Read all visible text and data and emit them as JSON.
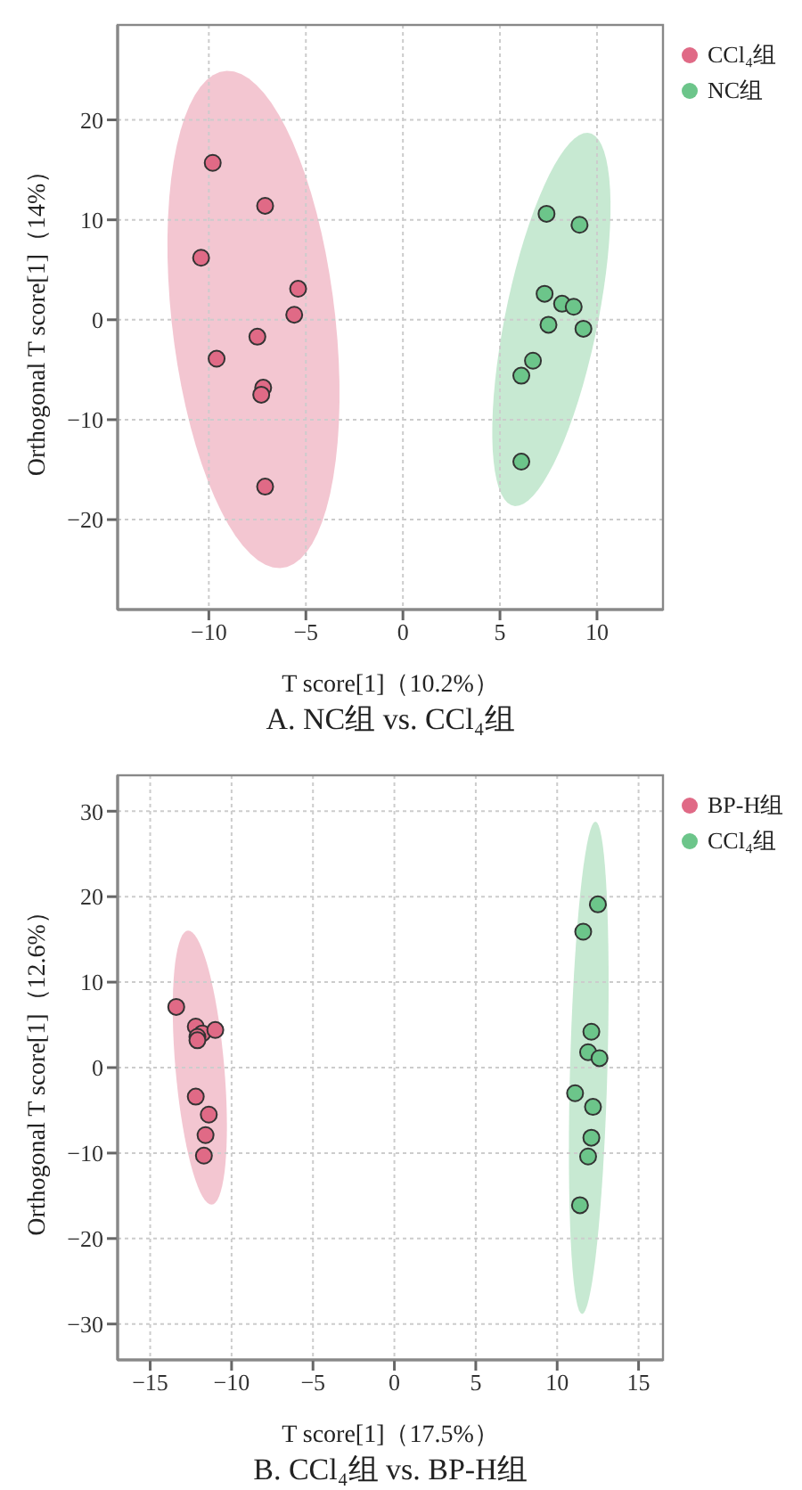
{
  "chart_data": [
    {
      "type": "scatter",
      "title": "A. NC组 vs. CCl₄组",
      "xlabel": "T score[1]（10.2%）",
      "ylabel": "Orthogonal T score[1]（14%）",
      "xlim": [
        -14.7,
        13.4
      ],
      "ylim": [
        -29,
        29.5
      ],
      "xticks": [
        -10,
        -5,
        0,
        5,
        10
      ],
      "yticks": [
        -20,
        -10,
        0,
        10,
        20
      ],
      "grid": true,
      "legend": "top right",
      "marker": "circle",
      "series": [
        {
          "name": "CCl₄组",
          "color": "#e06a86",
          "x": [
            -9.8,
            -7.1,
            -10.4,
            -5.4,
            -5.6,
            -7.5,
            -9.6,
            -7.2,
            -7.3,
            -7.1
          ],
          "values": [
            15.7,
            11.4,
            6.2,
            3.1,
            0.5,
            -1.7,
            -3.9,
            -6.8,
            -7.5,
            -16.7
          ]
        },
        {
          "name": "NC组",
          "color": "#6cc58a",
          "x": [
            7.4,
            9.1,
            7.3,
            8.2,
            8.8,
            7.5,
            9.3,
            6.7,
            6.1,
            6.1
          ],
          "values": [
            10.6,
            9.5,
            2.6,
            1.6,
            1.3,
            -0.5,
            -0.9,
            -4.1,
            -5.6,
            -14.2
          ]
        }
      ]
    },
    {
      "type": "scatter",
      "title": "B. CCl₄组 vs. BP-H组",
      "xlabel": "T score[1]（17.5%）",
      "ylabel": "Orthogonal T score[1]（12.6%）",
      "xlim": [
        -17,
        16.5
      ],
      "ylim": [
        -34.2,
        34.2
      ],
      "xticks": [
        -15,
        -10,
        -5,
        0,
        5,
        10,
        15
      ],
      "yticks": [
        -30,
        -20,
        -10,
        0,
        10,
        20,
        30
      ],
      "grid": true,
      "legend": "top right",
      "marker": "circle",
      "series": [
        {
          "name": "BP-H组",
          "color": "#e06a86",
          "x": [
            -13.4,
            -12.2,
            -11.8,
            -12.1,
            -12.1,
            -11.0,
            -12.2,
            -11.4,
            -11.6,
            -11.7
          ],
          "values": [
            7.1,
            4.8,
            4.0,
            3.6,
            3.2,
            4.4,
            -3.4,
            -5.5,
            -7.9,
            -10.3
          ]
        },
        {
          "name": "CCl₄组",
          "color": "#6cc58a",
          "x": [
            12.5,
            11.6,
            12.1,
            11.9,
            12.6,
            11.1,
            12.2,
            12.1,
            11.9,
            11.4
          ],
          "values": [
            19.1,
            15.9,
            4.2,
            1.8,
            1.1,
            -3.0,
            -4.6,
            -8.2,
            -10.4,
            -16.1
          ]
        }
      ]
    }
  ]
}
